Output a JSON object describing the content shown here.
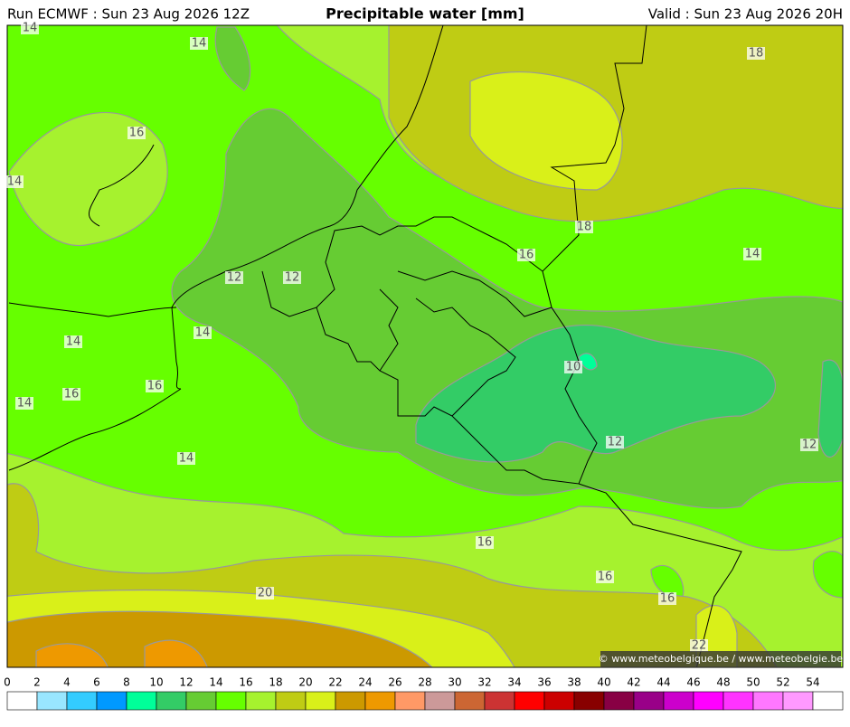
{
  "header": {
    "run": "Run ECMWF : Sun 23 Aug 2026 12Z",
    "title": "Precipitable water [mm]",
    "valid": "Valid : Sun 23 Aug 2026 20H"
  },
  "contour_labels": [
    14,
    14,
    18,
    16,
    14,
    18,
    16,
    14,
    12,
    12,
    14,
    14,
    16,
    16,
    14,
    10,
    12,
    12,
    14,
    16,
    16,
    16,
    20,
    22
  ],
  "copyright": "© www.meteobelgique.be / www.meteobelgie.be",
  "colorbar": {
    "ticks": [
      0,
      2,
      4,
      6,
      8,
      10,
      12,
      14,
      16,
      18,
      20,
      22,
      24,
      26,
      28,
      30,
      32,
      34,
      36,
      38,
      40,
      42,
      44,
      46,
      48,
      50,
      52,
      54
    ],
    "colors": [
      "#ffffff",
      "#99e6ff",
      "#33ccff",
      "#0099ff",
      "#00ff99",
      "#33cc66",
      "#66cc33",
      "#66ff00",
      "#a6f22e",
      "#bfcc14",
      "#d9f019",
      "#cc9900",
      "#ee9900",
      "#ff9966",
      "#cc9999",
      "#cc6633",
      "#cc3333",
      "#ff0000",
      "#cc0000",
      "#880000",
      "#880044",
      "#990088",
      "#cc00cc",
      "#ff00ff",
      "#ff33ff",
      "#ff77ff",
      "#ff99ff",
      "#ffffff"
    ]
  }
}
